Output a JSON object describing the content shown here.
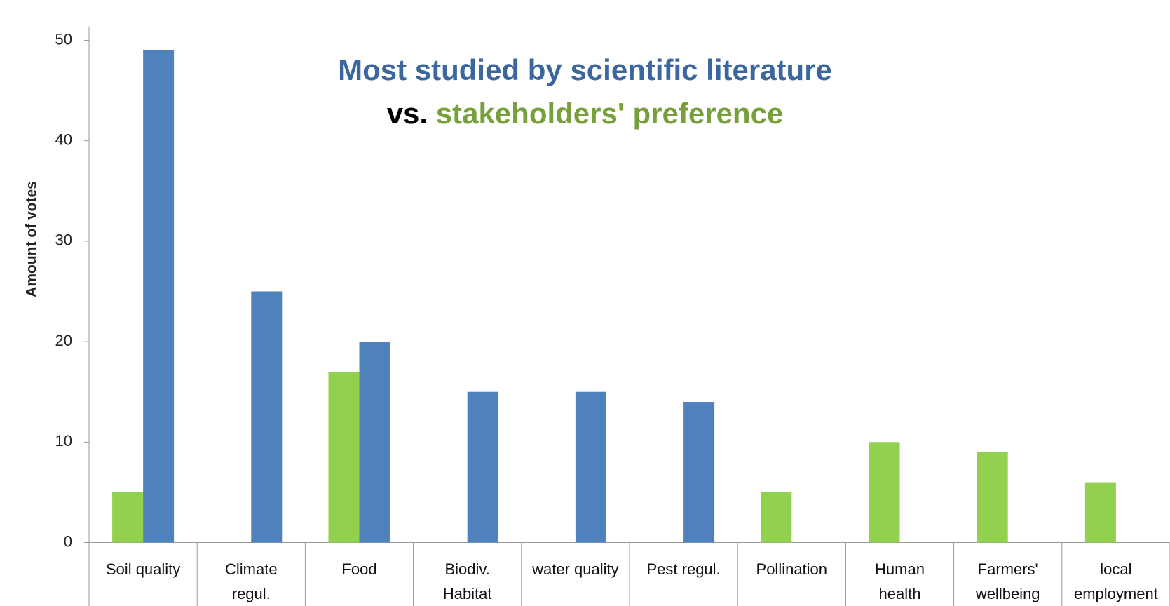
{
  "chart_data": {
    "type": "bar",
    "title": "Most studied by scientific literature",
    "subtitle": {
      "prefix": "vs.",
      "text": "stakeholders' preference"
    },
    "y_label": "Amount of votes",
    "categories": [
      "Soil quality",
      "Climate\nregul.",
      "Food",
      "Biodiv.\nHabitat",
      "water quality",
      "Pest regul.",
      "Pollination",
      "Human\nhealth",
      "Farmers'\nwellbeing",
      "local\nemployment"
    ],
    "series": [
      {
        "color": "#92d050",
        "values": [
          5,
          0,
          17,
          0,
          0,
          0,
          5,
          10,
          9,
          6
        ]
      },
      {
        "color": "#4f81bd",
        "values": [
          49,
          25,
          20,
          15,
          15,
          14,
          0,
          0,
          0,
          0
        ]
      }
    ],
    "ylim": [
      0,
      50
    ],
    "yticks": [
      0,
      10,
      20,
      30,
      40,
      50
    ],
    "grid": false
  }
}
